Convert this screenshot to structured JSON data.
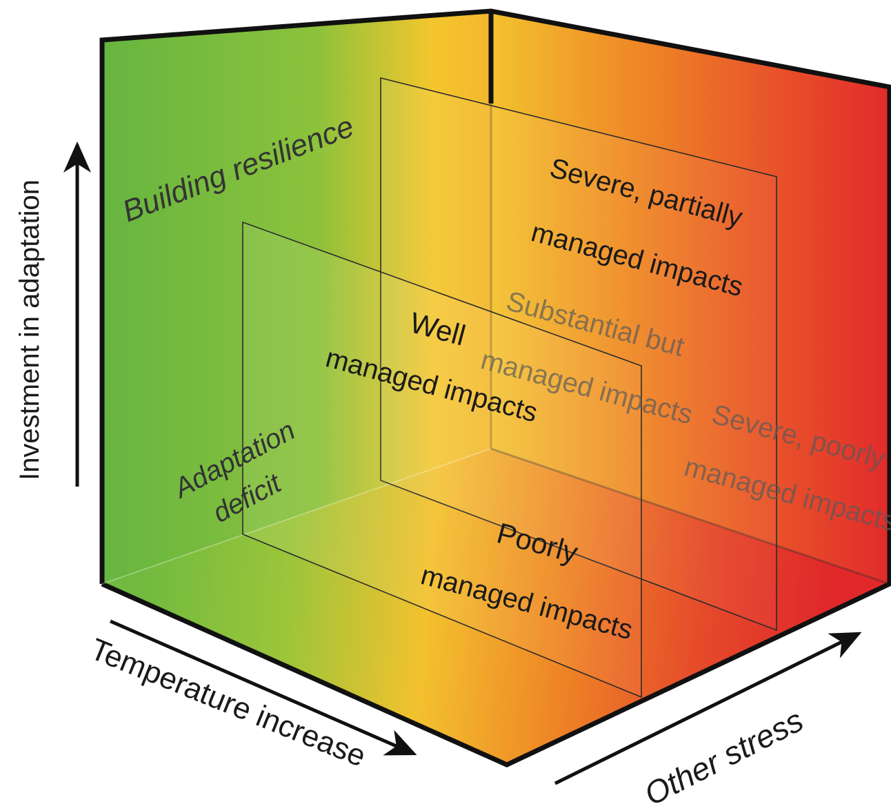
{
  "axes": {
    "vertical": "Investment in adaptation",
    "horizontal": "Temperature increase",
    "depth": "Other stress"
  },
  "regions": {
    "building_resilience": "Building resilience",
    "adaptation_deficit_line1": "Adaptation",
    "adaptation_deficit_line2": "deficit",
    "severe_partial_line1": "Severe, partially",
    "severe_partial_line2": "managed impacts",
    "substantial_line1": "Substantial but",
    "substantial_line2": "managed impacts",
    "well_line1": "Well",
    "well_line2": "managed impacts",
    "severe_poor_line1": "Severe, poorly",
    "severe_poor_line2": "managed impacts",
    "poorly_line1": "Poorly",
    "poorly_line2": "managed impacts"
  },
  "colors": {
    "low": "#7dbf3f",
    "mid": "#f2c12e",
    "high": "#e02a28",
    "orange": "#ee7a22"
  }
}
